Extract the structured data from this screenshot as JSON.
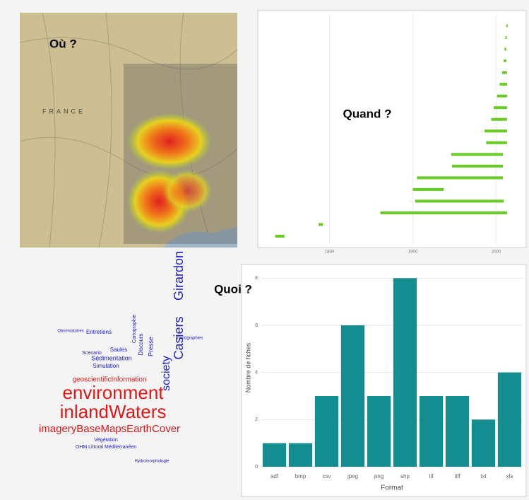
{
  "labels": {
    "where": "Où ?",
    "when": "Quand ?",
    "what": "Quoi ?",
    "map_country": "FRANCE"
  },
  "chart_data": [
    {
      "type": "range",
      "color": "#66cc22",
      "starts": [
        1735,
        1787,
        1861,
        1903,
        1900,
        1905,
        1947,
        1946,
        1988,
        1986,
        1994,
        1997,
        2001,
        2004,
        2007,
        2009,
        2010,
        2011,
        2012
      ],
      "ends": [
        1746,
        1792,
        2013,
        2009,
        1937,
        2008,
        2008,
        2008,
        2013,
        2013,
        2013,
        2013,
        2013,
        2013,
        2013,
        2012,
        2012,
        2012,
        2013
      ],
      "xlim": [
        1720,
        2030
      ],
      "xticks": [
        1800,
        1900,
        2000
      ],
      "grid": true
    },
    {
      "type": "bar",
      "color": "#138d90",
      "x_label": "Format",
      "y_label": "Nombre de fiches",
      "categories": [
        "adf",
        "bmp",
        "csv",
        "jpeg",
        "png",
        "shp",
        "tif",
        "tiff",
        "txt",
        "xls"
      ],
      "values": [
        1,
        1,
        3,
        6,
        3,
        8,
        3,
        3,
        2,
        4
      ],
      "ylim": [
        0,
        8.4
      ],
      "yticks": [
        0,
        2,
        4,
        6,
        8
      ],
      "grid": true
    }
  ],
  "word_cloud": {
    "words": [
      "environment",
      "inlandWaters",
      "imageryBaseMapsEarthCover",
      "geoscientificInformation",
      "society",
      "Casiers",
      "Girardon",
      "Sédimentation",
      "Simulation",
      "Presse",
      "Discours",
      "Entretiens",
      "Cartographie",
      "Végétation",
      "OHM Littoral Méditerranéen",
      "Scenario",
      "Saules",
      "Photographies",
      "Observatoires",
      "Hydromorphologie"
    ]
  }
}
